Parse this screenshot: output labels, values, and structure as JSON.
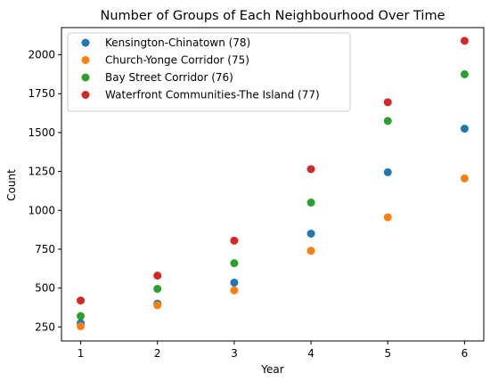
{
  "chart_data": {
    "type": "scatter",
    "title": "Number of Groups of Each Neighbourhood Over Time",
    "xlabel": "Year",
    "ylabel": "Count",
    "xlim": [
      0.75,
      6.25
    ],
    "ylim": [
      160,
      2175
    ],
    "xticks": [
      1,
      2,
      3,
      4,
      5,
      6
    ],
    "yticks": [
      250,
      500,
      750,
      1000,
      1250,
      1500,
      1750,
      2000
    ],
    "grid": false,
    "legend_position": "top-left",
    "series": [
      {
        "name": "Kensington-Chinatown (78)",
        "color": "#1f77b4",
        "x": [
          1,
          2,
          3,
          4,
          5,
          6
        ],
        "y": [
          275,
          400,
          535,
          850,
          1245,
          1525
        ]
      },
      {
        "name": "Church-Yonge Corridor (75)",
        "color": "#ff7f0e",
        "x": [
          1,
          2,
          3,
          4,
          5,
          6
        ],
        "y": [
          255,
          390,
          485,
          740,
          955,
          1205
        ]
      },
      {
        "name": "Bay Street Corridor (76)",
        "color": "#2ca02c",
        "x": [
          1,
          2,
          3,
          4,
          5,
          6
        ],
        "y": [
          320,
          495,
          660,
          1050,
          1575,
          1875
        ]
      },
      {
        "name": "Waterfront Communities-The Island (77)",
        "color": "#d62728",
        "x": [
          1,
          2,
          3,
          4,
          5,
          6
        ],
        "y": [
          420,
          580,
          805,
          1265,
          1695,
          2090
        ]
      }
    ]
  }
}
